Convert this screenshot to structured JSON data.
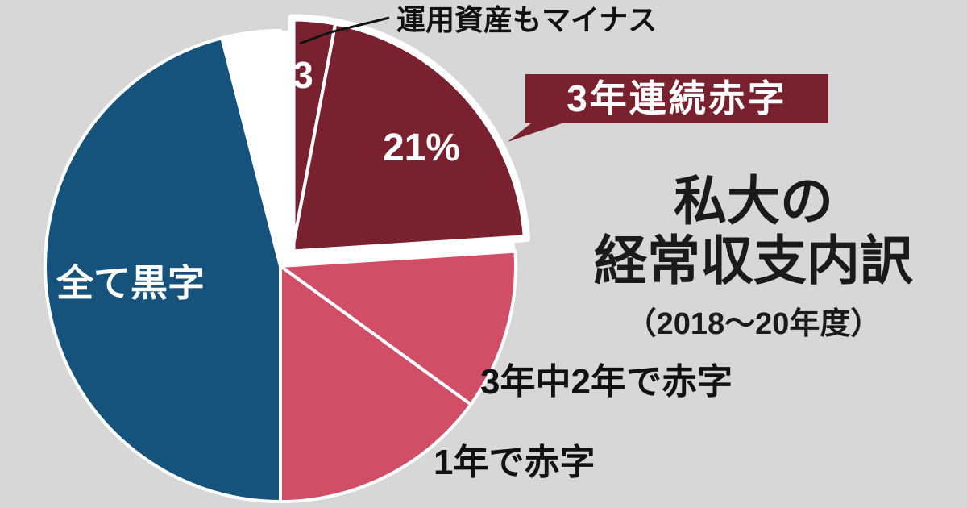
{
  "title": {
    "line1": "私大の",
    "line2": "経常収支内訳",
    "period": "（2018〜20年度）"
  },
  "callout": {
    "label": "運用資産もマイナス"
  },
  "badge": {
    "label": "3年連続赤字",
    "bg": "#7a2130",
    "text_color": "#ffffff"
  },
  "colors": {
    "background": "#d7d7d7",
    "maroon": "#7a2130",
    "pink": "#d14e67",
    "blue": "#15537d",
    "white": "#ffffff",
    "label_dark": "#111111"
  },
  "chart_data": {
    "type": "pie",
    "title": "私大の経常収支内訳（2018〜20年度）",
    "unit": "%",
    "start_angle_deg": 0,
    "direction": "clockwise",
    "explode_offset": [
      14,
      -16
    ],
    "segments": [
      {
        "id": "sliver-assets-negative",
        "label": "運用資産もマイナス",
        "value": 3,
        "value_label": "3",
        "color": "#7a2130",
        "exploded": true
      },
      {
        "id": "deficit-3yr",
        "label": "3年連続赤字",
        "value": 21,
        "value_label": "21%",
        "color": "#7a2130",
        "exploded": true
      },
      {
        "id": "deficit-2of3",
        "label": "3年中2年で赤字",
        "value": 11,
        "value_label": "",
        "color": "#d14e67",
        "exploded": false
      },
      {
        "id": "deficit-1yr",
        "label": "1年で赤字",
        "value": 15,
        "value_label": "",
        "color": "#d14e67",
        "exploded": false
      },
      {
        "id": "all-surplus",
        "label": "全て黒字",
        "value": 46,
        "value_label": "",
        "color": "#15537d",
        "exploded": false
      },
      {
        "id": "blank",
        "label": "",
        "value": 4,
        "value_label": "",
        "color": "#ffffff",
        "exploded": false
      }
    ],
    "annotations": [
      {
        "text": "運用資産もマイナス",
        "points_to": "sliver-assets-negative"
      },
      {
        "text": "3年連続赤字",
        "points_to": "deficit-3yr"
      }
    ]
  }
}
